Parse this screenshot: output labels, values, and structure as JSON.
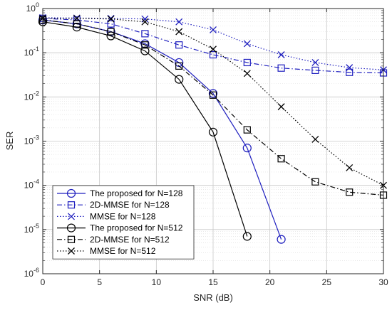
{
  "chart_data": {
    "type": "line",
    "title": "",
    "xlabel": "SNR (dB)",
    "ylabel": "SER",
    "xlim": [
      0,
      30
    ],
    "ylim": [
      1e-06,
      1
    ],
    "yscale": "log",
    "grid": true,
    "legend_position": "bottom-left",
    "x_ticks": [
      0,
      5,
      10,
      15,
      20,
      25,
      30
    ],
    "x_tick_labels": [
      "0",
      "5",
      "10",
      "15",
      "20",
      "25",
      "30"
    ],
    "y_ticks": [
      1,
      0.1,
      0.01,
      0.001,
      0.0001,
      1e-05,
      1e-06
    ],
    "y_tick_labels": [
      {
        "base": "10",
        "exp": "0"
      },
      {
        "base": "10",
        "exp": "-1"
      },
      {
        "base": "10",
        "exp": "-2"
      },
      {
        "base": "10",
        "exp": "-3"
      },
      {
        "base": "10",
        "exp": "-4"
      },
      {
        "base": "10",
        "exp": "-5"
      },
      {
        "base": "10",
        "exp": "-6"
      }
    ],
    "series": [
      {
        "name": "The proposed for N=128",
        "color": "#1f1fbf",
        "dash": "solid",
        "marker": "circle",
        "x": [
          0,
          3,
          6,
          9,
          12,
          15,
          18,
          21
        ],
        "y": [
          0.55,
          0.45,
          0.3,
          0.16,
          0.06,
          0.012,
          0.0007,
          6e-06
        ]
      },
      {
        "name": "2D-MMSE for N=128",
        "color": "#1f1fbf",
        "dash": "dashdot",
        "marker": "square",
        "x": [
          0,
          3,
          6,
          9,
          12,
          15,
          18,
          21,
          24,
          27,
          30
        ],
        "y": [
          0.6,
          0.55,
          0.45,
          0.27,
          0.15,
          0.09,
          0.06,
          0.045,
          0.04,
          0.036,
          0.035
        ]
      },
      {
        "name": "MMSE for N=128",
        "color": "#1f1fbf",
        "dash": "dotted",
        "marker": "x",
        "x": [
          0,
          3,
          6,
          9,
          12,
          15,
          18,
          21,
          24,
          27,
          30
        ],
        "y": [
          0.62,
          0.61,
          0.6,
          0.58,
          0.5,
          0.33,
          0.16,
          0.09,
          0.06,
          0.046,
          0.041
        ]
      },
      {
        "name": "The proposed for N=512",
        "color": "#000000",
        "dash": "solid",
        "marker": "circle",
        "x": [
          0,
          3,
          6,
          9,
          12,
          15,
          18
        ],
        "y": [
          0.5,
          0.38,
          0.24,
          0.11,
          0.025,
          0.0016,
          7e-06
        ]
      },
      {
        "name": "2D-MMSE for N=512",
        "color": "#000000",
        "dash": "dashdot",
        "marker": "square",
        "x": [
          0,
          3,
          6,
          9,
          12,
          15,
          18,
          21,
          24,
          27,
          30
        ],
        "y": [
          0.55,
          0.45,
          0.3,
          0.15,
          0.05,
          0.011,
          0.0018,
          0.0004,
          0.00012,
          7e-05,
          6e-05
        ]
      },
      {
        "name": "MMSE for N=512",
        "color": "#000000",
        "dash": "dotted",
        "marker": "x",
        "x": [
          0,
          3,
          6,
          9,
          12,
          15,
          18,
          21,
          24,
          27,
          30
        ],
        "y": [
          0.6,
          0.6,
          0.58,
          0.5,
          0.3,
          0.12,
          0.034,
          0.006,
          0.0011,
          0.00025,
          0.0001
        ]
      }
    ]
  }
}
